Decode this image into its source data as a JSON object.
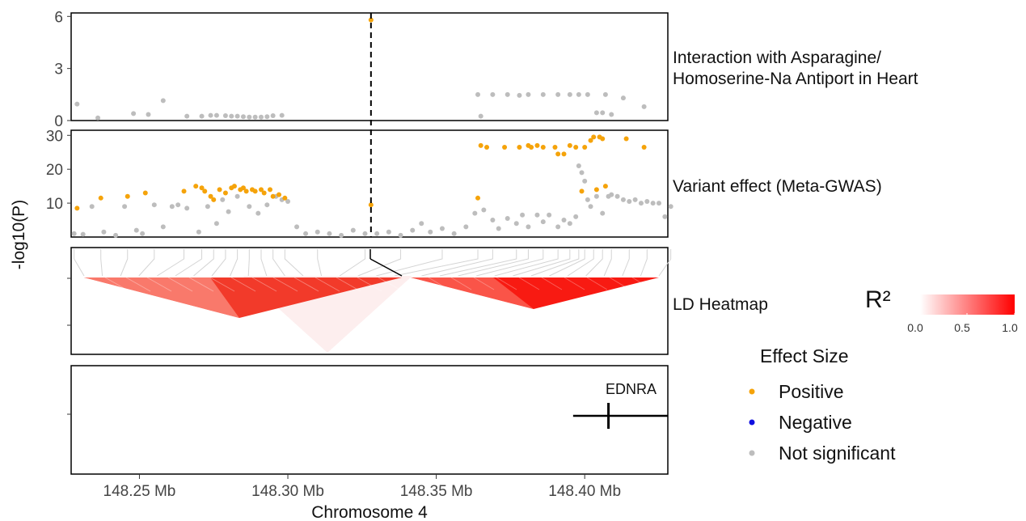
{
  "chart_data": {
    "type": "scatter",
    "ylabel": "-log10(P)",
    "xlabel": "Chromosome 4",
    "xlim": [
      148.227,
      148.428
    ],
    "x_ticks": [
      {
        "value": 148.25,
        "label": "148.25 Mb"
      },
      {
        "value": 148.3,
        "label": "148.30 Mb"
      },
      {
        "value": 148.35,
        "label": "148.35 Mb"
      },
      {
        "value": 148.4,
        "label": "148.40 Mb"
      }
    ],
    "vline_x": 148.328,
    "panels": [
      {
        "label": "Interaction with Asparagine/\nHomoserine-Na Antiport in Heart",
        "ylim": [
          0,
          6.2
        ],
        "yticks": [
          0,
          3,
          6
        ],
        "points_positive": [
          [
            148.328,
            5.8
          ]
        ],
        "points_not_significant": [
          [
            148.229,
            0.95
          ],
          [
            148.236,
            0.15
          ],
          [
            148.248,
            0.4
          ],
          [
            148.253,
            0.35
          ],
          [
            148.258,
            1.15
          ],
          [
            148.266,
            0.25
          ],
          [
            148.271,
            0.25
          ],
          [
            148.274,
            0.3
          ],
          [
            148.276,
            0.3
          ],
          [
            148.279,
            0.28
          ],
          [
            148.281,
            0.25
          ],
          [
            148.283,
            0.25
          ],
          [
            148.285,
            0.22
          ],
          [
            148.287,
            0.2
          ],
          [
            148.289,
            0.2
          ],
          [
            148.291,
            0.2
          ],
          [
            148.293,
            0.22
          ],
          [
            148.295,
            0.28
          ],
          [
            148.298,
            0.3
          ],
          [
            148.364,
            1.5
          ],
          [
            148.365,
            0.25
          ],
          [
            148.369,
            1.5
          ],
          [
            148.374,
            1.5
          ],
          [
            148.378,
            1.45
          ],
          [
            148.381,
            1.5
          ],
          [
            148.386,
            1.5
          ],
          [
            148.391,
            1.5
          ],
          [
            148.395,
            1.5
          ],
          [
            148.398,
            1.5
          ],
          [
            148.401,
            1.5
          ],
          [
            148.404,
            0.45
          ],
          [
            148.406,
            0.45
          ],
          [
            148.407,
            1.5
          ],
          [
            148.409,
            0.35
          ],
          [
            148.413,
            1.3
          ],
          [
            148.42,
            0.8
          ]
        ]
      },
      {
        "label": "Variant effect (Meta-GWAS)",
        "ylim": [
          0,
          31.5
        ],
        "yticks": [
          10,
          20,
          30
        ],
        "points_positive": [
          [
            148.229,
            8.5
          ],
          [
            148.237,
            11.5
          ],
          [
            148.246,
            12
          ],
          [
            148.252,
            13
          ],
          [
            148.265,
            13.5
          ],
          [
            148.269,
            15
          ],
          [
            148.271,
            14.5
          ],
          [
            148.272,
            13.5
          ],
          [
            148.274,
            12
          ],
          [
            148.275,
            11
          ],
          [
            148.277,
            14
          ],
          [
            148.279,
            13
          ],
          [
            148.281,
            14.5
          ],
          [
            148.282,
            15
          ],
          [
            148.284,
            14
          ],
          [
            148.285,
            14.5
          ],
          [
            148.286,
            13.5
          ],
          [
            148.288,
            14
          ],
          [
            148.289,
            13.5
          ],
          [
            148.291,
            14
          ],
          [
            148.292,
            13
          ],
          [
            148.294,
            14
          ],
          [
            148.295,
            12
          ],
          [
            148.297,
            12.5
          ],
          [
            148.299,
            11.5
          ],
          [
            148.328,
            9.5
          ],
          [
            148.364,
            11.5
          ],
          [
            148.365,
            27
          ],
          [
            148.367,
            26.5
          ],
          [
            148.373,
            26.5
          ],
          [
            148.378,
            26.5
          ],
          [
            148.381,
            27
          ],
          [
            148.382,
            26.5
          ],
          [
            148.384,
            27
          ],
          [
            148.386,
            26.5
          ],
          [
            148.39,
            26.5
          ],
          [
            148.391,
            24.5
          ],
          [
            148.393,
            24.5
          ],
          [
            148.395,
            27
          ],
          [
            148.397,
            26.5
          ],
          [
            148.399,
            13.5
          ],
          [
            148.4,
            26.5
          ],
          [
            148.402,
            28.5
          ],
          [
            148.403,
            29.5
          ],
          [
            148.404,
            14
          ],
          [
            148.405,
            29.5
          ],
          [
            148.406,
            29
          ],
          [
            148.407,
            15
          ],
          [
            148.414,
            29
          ],
          [
            148.42,
            26.5
          ]
        ],
        "points_not_significant": [
          [
            148.228,
            1
          ],
          [
            148.231,
            0.8
          ],
          [
            148.234,
            9
          ],
          [
            148.238,
            1.5
          ],
          [
            148.242,
            0.5
          ],
          [
            148.245,
            9
          ],
          [
            148.249,
            2
          ],
          [
            148.251,
            1
          ],
          [
            148.255,
            9.5
          ],
          [
            148.258,
            3
          ],
          [
            148.261,
            9
          ],
          [
            148.263,
            9.5
          ],
          [
            148.266,
            8.5
          ],
          [
            148.27,
            1.5
          ],
          [
            148.273,
            9
          ],
          [
            148.276,
            4
          ],
          [
            148.278,
            11
          ],
          [
            148.28,
            7.5
          ],
          [
            148.283,
            12
          ],
          [
            148.287,
            9
          ],
          [
            148.29,
            7
          ],
          [
            148.293,
            9.5
          ],
          [
            148.296,
            12
          ],
          [
            148.298,
            11
          ],
          [
            148.3,
            10.5
          ],
          [
            148.303,
            3
          ],
          [
            148.306,
            1
          ],
          [
            148.31,
            1.5
          ],
          [
            148.314,
            1
          ],
          [
            148.318,
            0.5
          ],
          [
            148.322,
            2
          ],
          [
            148.326,
            1
          ],
          [
            148.33,
            1
          ],
          [
            148.334,
            1.5
          ],
          [
            148.338,
            0.5
          ],
          [
            148.342,
            2
          ],
          [
            148.345,
            4
          ],
          [
            148.348,
            1.5
          ],
          [
            148.352,
            2.5
          ],
          [
            148.356,
            1
          ],
          [
            148.36,
            3
          ],
          [
            148.363,
            7
          ],
          [
            148.366,
            8
          ],
          [
            148.369,
            5
          ],
          [
            148.371,
            2.5
          ],
          [
            148.374,
            5.5
          ],
          [
            148.377,
            4
          ],
          [
            148.379,
            6.5
          ],
          [
            148.381,
            3
          ],
          [
            148.384,
            6.5
          ],
          [
            148.386,
            4.5
          ],
          [
            148.388,
            6.5
          ],
          [
            148.391,
            3
          ],
          [
            148.393,
            5
          ],
          [
            148.395,
            4
          ],
          [
            148.397,
            6
          ],
          [
            148.398,
            21
          ],
          [
            148.399,
            19
          ],
          [
            148.4,
            16.5
          ],
          [
            148.401,
            11
          ],
          [
            148.402,
            9
          ],
          [
            148.404,
            12
          ],
          [
            148.406,
            7
          ],
          [
            148.408,
            12
          ],
          [
            148.409,
            12.5
          ],
          [
            148.411,
            12
          ],
          [
            148.413,
            11
          ],
          [
            148.415,
            10.5
          ],
          [
            148.417,
            11
          ],
          [
            148.419,
            10
          ],
          [
            148.421,
            10.5
          ],
          [
            148.423,
            10
          ],
          [
            148.425,
            10
          ],
          [
            148.427,
            6
          ],
          [
            148.429,
            9
          ]
        ]
      },
      {
        "label": "LD Heatmap"
      },
      {
        "gene": {
          "name": "EDNRA",
          "start": 148.401,
          "end": 148.428,
          "tss": 148.408
        }
      }
    ],
    "legend": {
      "color_title": "R²",
      "color_scale": [
        "#ffffff",
        "#ff0000"
      ],
      "color_ticks": [
        "0.0",
        "0.5",
        "1.0"
      ],
      "effect_title": "Effect Size",
      "effect_items": [
        {
          "label": "Positive",
          "color": "#f5a30a"
        },
        {
          "label": "Negative",
          "color": "#1010e0"
        },
        {
          "label": "Not significant",
          "color": "#bdbdbd"
        }
      ]
    }
  }
}
